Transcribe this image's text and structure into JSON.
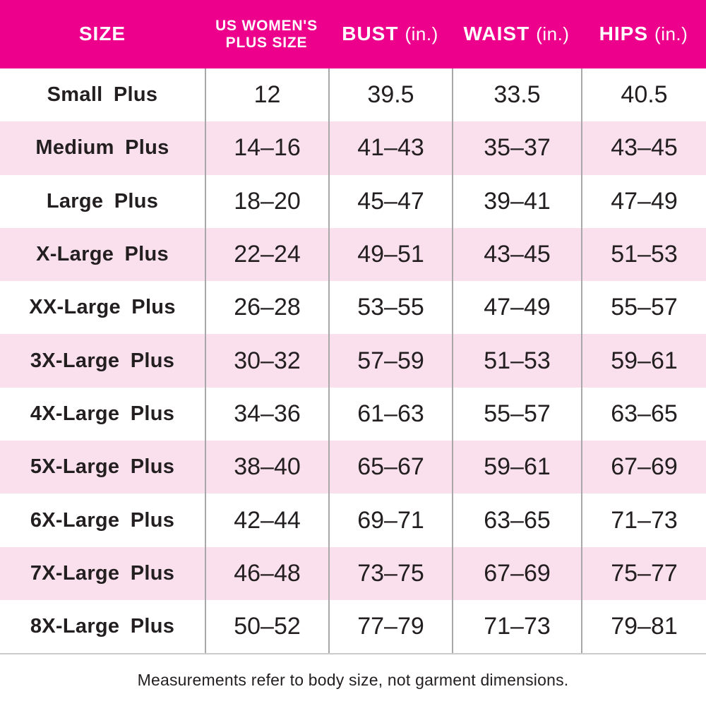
{
  "colors": {
    "page_bg": "#FFFFFF",
    "header_bg": "#EC008C",
    "header_text": "#FFFFFF",
    "row_bg": "#FFFFFF",
    "row_alt_bg": "#F9E0EC",
    "text": "#231F20",
    "divider": "#A8A8A8",
    "bottom_border": "#CBCBCB"
  },
  "header": {
    "size": "SIZE",
    "plus_line1": "US WOMEN'S",
    "plus_line2": "PLUS SIZE",
    "bust": "BUST",
    "waist": "WAIST",
    "hips": "HIPS",
    "unit": "(in.)"
  },
  "footer": {
    "note": "Measurements refer to body size, not garment dimensions."
  },
  "chart_data": {
    "type": "table",
    "title": "US Women's Plus Size Chart",
    "columns": [
      "SIZE",
      "US WOMEN'S PLUS SIZE",
      "BUST (in.)",
      "WAIST (in.)",
      "HIPS (in.)"
    ],
    "rows": [
      [
        "Small Plus",
        "12",
        "39.5",
        "33.5",
        "40.5"
      ],
      [
        "Medium Plus",
        "14–16",
        "41–43",
        "35–37",
        "43–45"
      ],
      [
        "Large Plus",
        "18–20",
        "45–47",
        "39–41",
        "47–49"
      ],
      [
        "X-Large Plus",
        "22–24",
        "49–51",
        "43–45",
        "51–53"
      ],
      [
        "XX-Large Plus",
        "26–28",
        "53–55",
        "47–49",
        "55–57"
      ],
      [
        "3X-Large Plus",
        "30–32",
        "57–59",
        "51–53",
        "59–61"
      ],
      [
        "4X-Large Plus",
        "34–36",
        "61–63",
        "55–57",
        "63–65"
      ],
      [
        "5X-Large Plus",
        "38–40",
        "65–67",
        "59–61",
        "67–69"
      ],
      [
        "6X-Large Plus",
        "42–44",
        "69–71",
        "63–65",
        "71–73"
      ],
      [
        "7X-Large Plus",
        "46–48",
        "73–75",
        "67–69",
        "75–77"
      ],
      [
        "8X-Large Plus",
        "50–52",
        "77–79",
        "71–73",
        "79–81"
      ]
    ],
    "footnote": "Measurements refer to body size, not garment dimensions.",
    "layout": {
      "alternating_row_shading": true,
      "shaded_row_indices": [
        1,
        3,
        5,
        7,
        9
      ],
      "column_dividers": true,
      "header_style": "magenta-band"
    }
  }
}
